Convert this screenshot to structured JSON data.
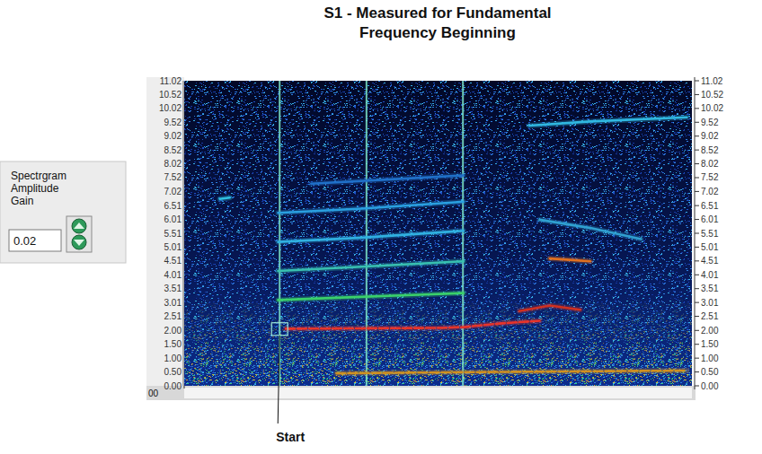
{
  "chart_data": {
    "type": "spectrogram",
    "title": "S1 - Measured for Fundamental Frequency Beginning",
    "xlim": [
      0,
      100
    ],
    "xticks": [
      {
        "value": 0,
        "label": "00"
      }
    ],
    "ylim": [
      0,
      11.02
    ],
    "yticks": [
      {
        "value": 0,
        "label": "0.00"
      },
      {
        "value": 0.5,
        "label": "0.50"
      },
      {
        "value": 1,
        "label": "1.00"
      },
      {
        "value": 1.5,
        "label": "1.50"
      },
      {
        "value": 2,
        "label": "2.00"
      },
      2.51,
      3.01,
      3.51,
      4.01,
      4.51,
      5.01,
      5.51,
      6.01,
      6.51,
      7.02,
      7.52,
      8.02,
      8.52,
      9.02,
      9.52,
      10.02,
      10.52,
      11.02
    ],
    "series": [
      {
        "x": [
          20,
          30,
          40,
          50,
          55,
          62,
          70
        ],
        "values": [
          2.06,
          2.07,
          2.08,
          2.09,
          2.12,
          2.25,
          2.35
        ],
        "color": "#e8342a",
        "line_style": "dashed"
      },
      {
        "x": [
          18.5,
          30,
          45,
          55
        ],
        "values": [
          3.1,
          3.18,
          3.28,
          3.35
        ],
        "color": "#3ad06a"
      },
      {
        "x": [
          18.5,
          35,
          55
        ],
        "values": [
          4.15,
          4.3,
          4.5
        ],
        "color": "#38c0b0"
      },
      {
        "x": [
          18.5,
          35,
          55
        ],
        "values": [
          5.2,
          5.35,
          5.6
        ],
        "color": "#30b0e0"
      },
      {
        "x": [
          18.5,
          35,
          55
        ],
        "values": [
          6.25,
          6.4,
          6.65
        ],
        "color": "#2aa0e0"
      },
      {
        "x": [
          25,
          40,
          55
        ],
        "values": [
          7.3,
          7.45,
          7.6
        ],
        "color": "#2070c8"
      },
      {
        "x": [
          68,
          80,
          99
        ],
        "values": [
          9.4,
          9.55,
          9.7
        ],
        "color": "#30b8e0"
      },
      {
        "x": [
          30,
          60,
          99
        ],
        "values": [
          0.45,
          0.5,
          0.55
        ],
        "color": "#d09020",
        "line_style": "dashed"
      },
      {
        "x": [
          70,
          80,
          90
        ],
        "values": [
          6.0,
          5.7,
          5.3
        ],
        "color": "#30a0d0"
      },
      {
        "x": [
          66,
          72,
          78
        ],
        "values": [
          2.7,
          2.9,
          2.75
        ],
        "color": "#d03020"
      },
      {
        "x": [
          72,
          76,
          80
        ],
        "values": [
          4.6,
          4.55,
          4.5
        ],
        "color": "#e07020"
      },
      {
        "x": [
          7,
          9
        ],
        "values": [
          6.75,
          6.8
        ],
        "color": "#30c0e0"
      }
    ],
    "broadband": {
      "x": [
        18.8,
        35.9,
        54.9
      ],
      "color": "#7fe8c8"
    },
    "annotations": [
      {
        "text": "Start",
        "x": 18.8,
        "y": 2.05
      }
    ]
  },
  "control": {
    "label": "Spectrgram Amplitude Gain",
    "value": 0.02
  }
}
